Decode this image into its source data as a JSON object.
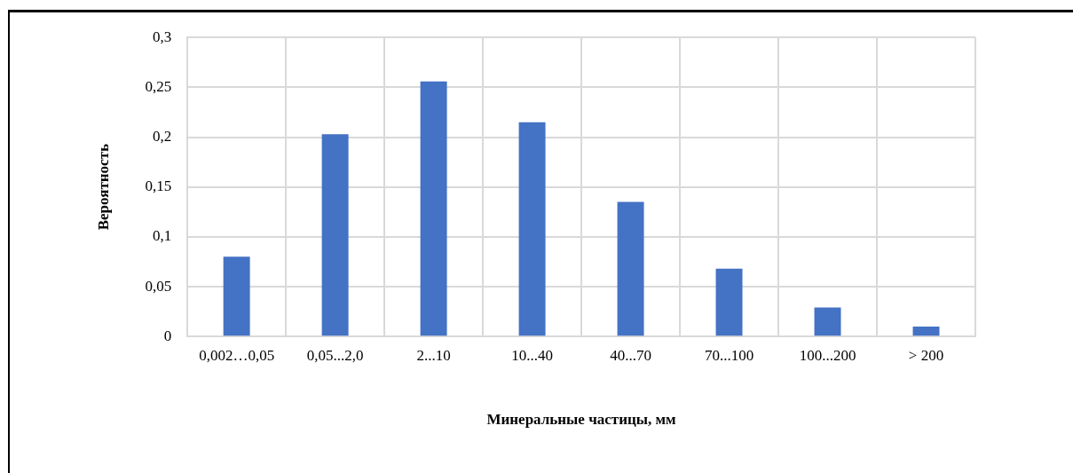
{
  "chart_data": {
    "type": "bar",
    "xlabel": "Минеральные частицы, мм",
    "ylabel": "Вероятность",
    "categories": [
      "0,002…0,05",
      "0,05...2,0",
      "2...10",
      "10...40",
      "40...70",
      "70...100",
      "100...200",
      "> 200"
    ],
    "values": [
      0.08,
      0.203,
      0.256,
      0.215,
      0.135,
      0.068,
      0.029,
      0.01
    ],
    "color": "#4472c4",
    "ylim": [
      0,
      0.3
    ],
    "yticks": [
      {
        "value": 0,
        "label": "0"
      },
      {
        "value": 0.05,
        "label": "0,05"
      },
      {
        "value": 0.1,
        "label": "0,1"
      },
      {
        "value": 0.15,
        "label": "0,15"
      },
      {
        "value": 0.2,
        "label": "0,2"
      },
      {
        "value": 0.25,
        "label": "0,25"
      },
      {
        "value": 0.3,
        "label": "0,3"
      }
    ],
    "grid": true,
    "legend": false
  }
}
